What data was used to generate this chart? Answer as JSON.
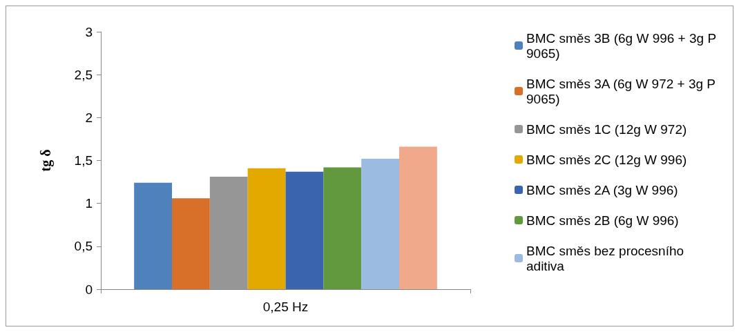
{
  "chart_data": {
    "type": "bar",
    "ylabel": "tg δ",
    "categories": [
      "0,25 Hz"
    ],
    "series": [
      {
        "name": "BMC směs 3B (6g W 996 + 3g P 9065)",
        "color": "#4f81bd",
        "values": [
          1.24
        ]
      },
      {
        "name": "BMC směs 3A (6g W 972 + 3g P 9065)",
        "color": "#d9702a",
        "values": [
          1.06
        ]
      },
      {
        "name": "BMC směs 1C (12g W 972)",
        "color": "#969696",
        "values": [
          1.31
        ]
      },
      {
        "name": "BMC směs 2C (12g W 996)",
        "color": "#e3a900",
        "values": [
          1.41
        ]
      },
      {
        "name": "BMC směs 2A (3g W 996)",
        "color": "#3a64ad",
        "values": [
          1.37
        ]
      },
      {
        "name": "BMC směs 2B (6g W 996)",
        "color": "#62993e",
        "values": [
          1.42
        ]
      },
      {
        "name": "BMC směs bez procesního aditiva",
        "color": "#9bbbe0",
        "values": [
          1.52
        ]
      },
      {
        "color": "#f0a98a",
        "values": [
          1.66
        ]
      }
    ],
    "ylim": [
      0,
      3
    ],
    "yticks": [
      0,
      {
        "value": 0.5,
        "label": "0,5"
      },
      1,
      {
        "value": 1.5,
        "label": "1,5"
      },
      2,
      {
        "value": 2.5,
        "label": "2,5"
      },
      3
    ],
    "grid": false,
    "legend": "right"
  }
}
